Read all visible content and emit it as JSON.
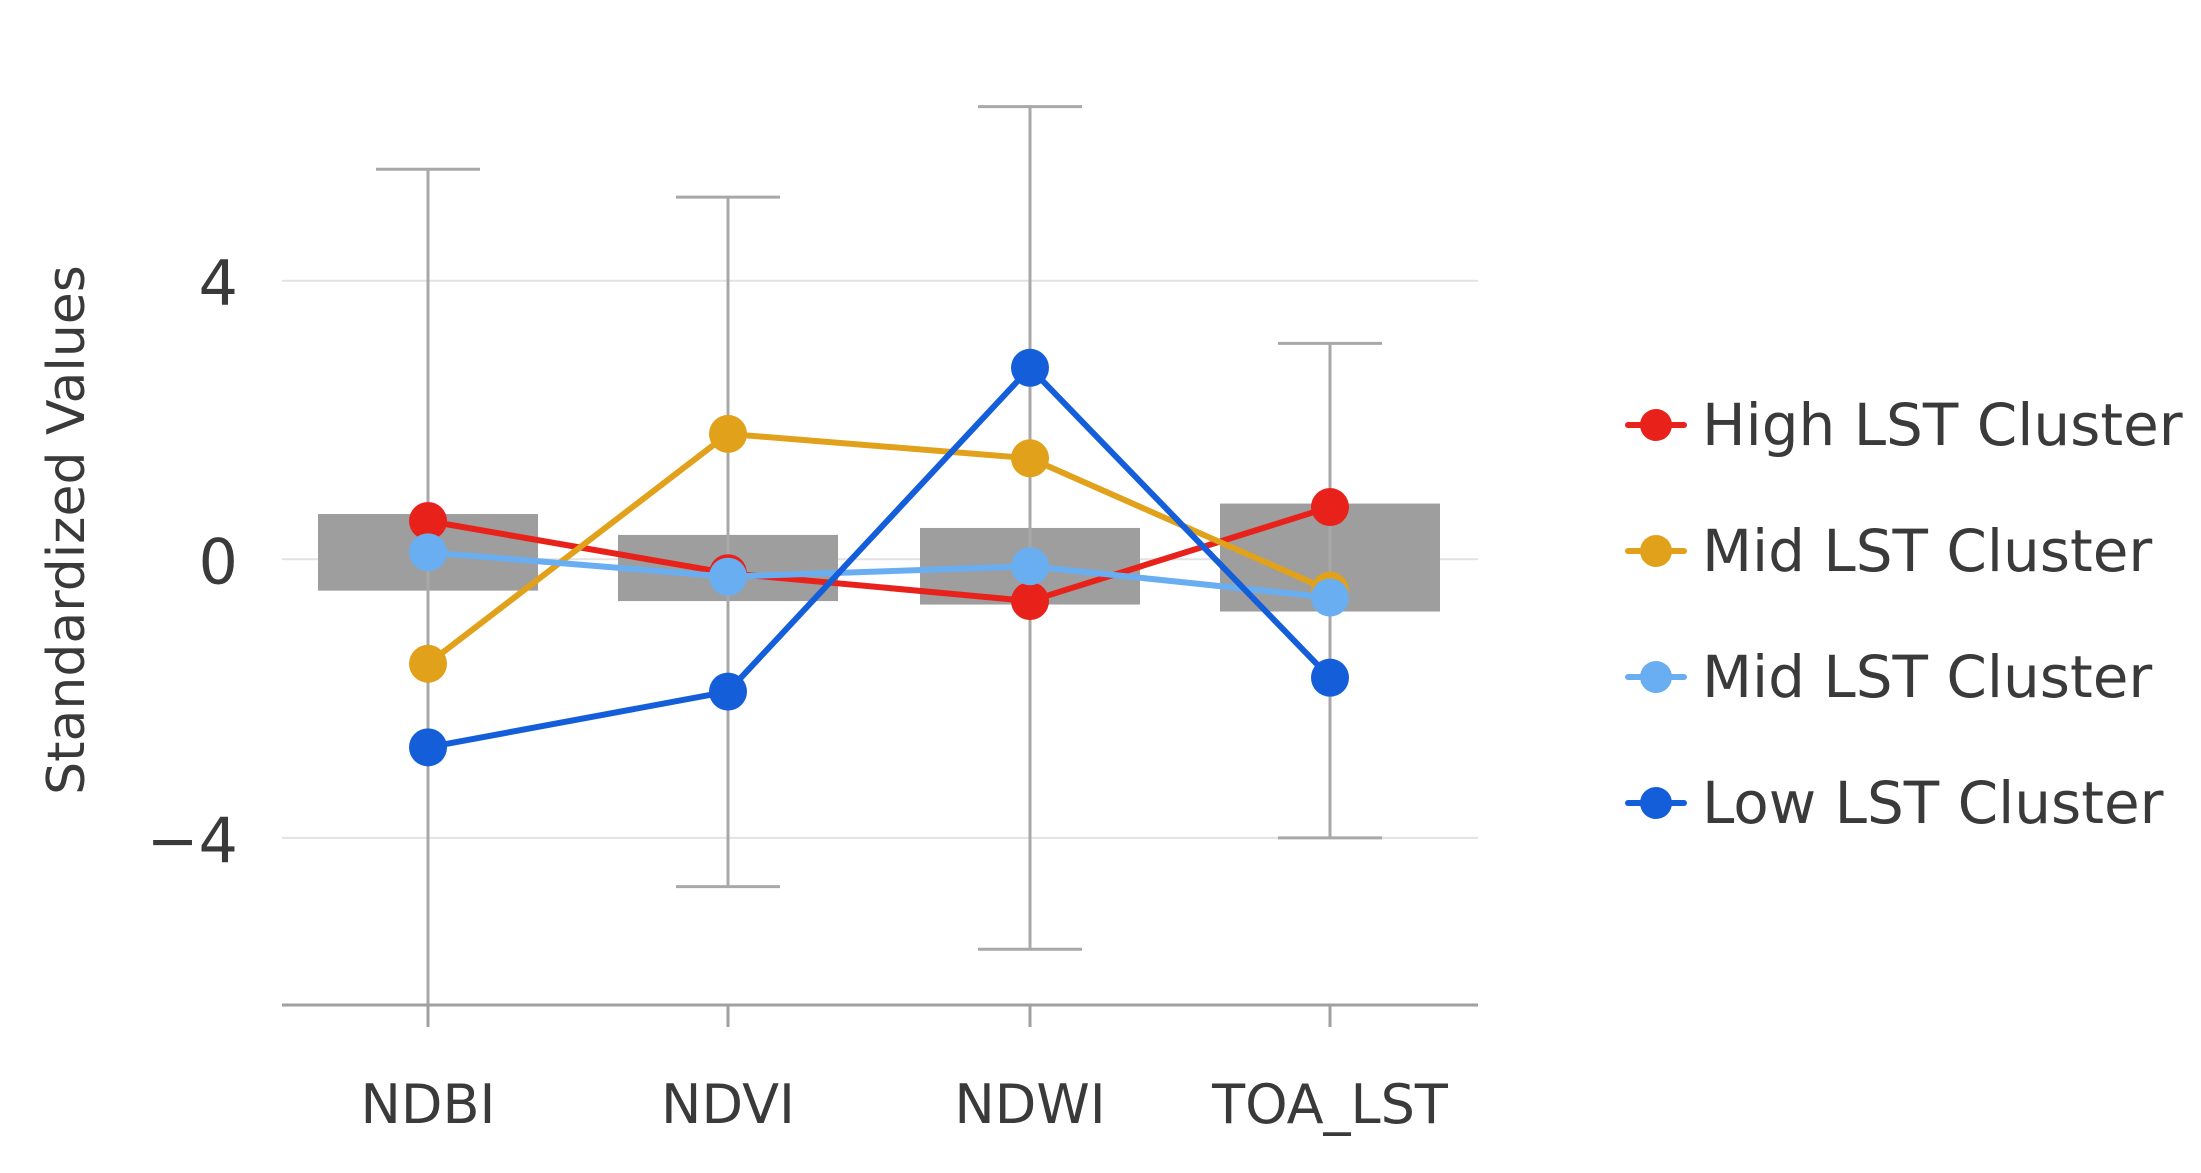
{
  "chart_data": {
    "type": "line",
    "title": "",
    "xlabel": "",
    "ylabel": "Standardized Values",
    "categories": [
      "NDBI",
      "NDVI",
      "NDWI",
      "TOA_LST"
    ],
    "ylim": [
      -6.4,
      7.6
    ],
    "yticks": [
      -4,
      0,
      4
    ],
    "ytick_labels": [
      "−4",
      "0",
      "4"
    ],
    "grid": true,
    "legend_position": "right",
    "box_iqr": [
      {
        "category": "NDBI",
        "low": -0.45,
        "high": 0.65
      },
      {
        "category": "NDVI",
        "low": -0.6,
        "high": 0.35
      },
      {
        "category": "NDWI",
        "low": -0.65,
        "high": 0.45
      },
      {
        "category": "TOA_LST",
        "low": -0.75,
        "high": 0.8
      }
    ],
    "whiskers": [
      {
        "category": "NDBI",
        "low": -6.4,
        "high": 5.6
      },
      {
        "category": "NDVI",
        "low": -4.7,
        "high": 5.2
      },
      {
        "category": "NDWI",
        "low": -5.6,
        "high": 6.5
      },
      {
        "category": "TOA_LST",
        "low": -4.0,
        "high": 3.1
      }
    ],
    "series": [
      {
        "name": "High LST Cluster",
        "color": "#e8221b",
        "values": [
          0.55,
          -0.2,
          -0.6,
          0.75
        ]
      },
      {
        "name": "Mid LST Cluster",
        "color": "#e1a11b",
        "values": [
          -1.5,
          1.8,
          1.45,
          -0.45
        ]
      },
      {
        "name": "Mid LST Cluster",
        "color": "#6aaef2",
        "values": [
          0.1,
          -0.25,
          -0.1,
          -0.55
        ]
      },
      {
        "name": "Low LST Cluster",
        "color": "#145fd9",
        "values": [
          -2.7,
          -1.9,
          2.75,
          -1.7
        ]
      }
    ]
  },
  "colors": {
    "box_fill": "#9e9e9e",
    "whisker": "#a8a8a8",
    "grid": "#e2e2e2",
    "axis": "#a0a0a0",
    "text": "#3a3a3a"
  }
}
